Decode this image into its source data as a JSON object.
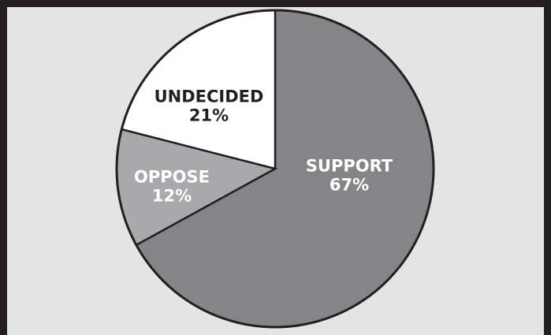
{
  "chart_data": {
    "type": "pie",
    "slices": [
      {
        "label": "SUPPORT",
        "value": 67,
        "value_label": "67%",
        "color": "#858587",
        "text_color": "#ffffff"
      },
      {
        "label": "OPPOSE",
        "value": 12,
        "value_label": "12%",
        "color": "#a8a9ab",
        "text_color": "#ffffff"
      },
      {
        "label": "UNDECIDED",
        "value": 21,
        "value_label": "21%",
        "color": "#ffffff",
        "text_color": "#231f20"
      }
    ],
    "start_angle_deg": 0,
    "direction": "clockwise",
    "legend": "none",
    "colors": {
      "frame": "#231f20",
      "background": "#e4e4e5",
      "slice_border": "#231f20"
    }
  }
}
